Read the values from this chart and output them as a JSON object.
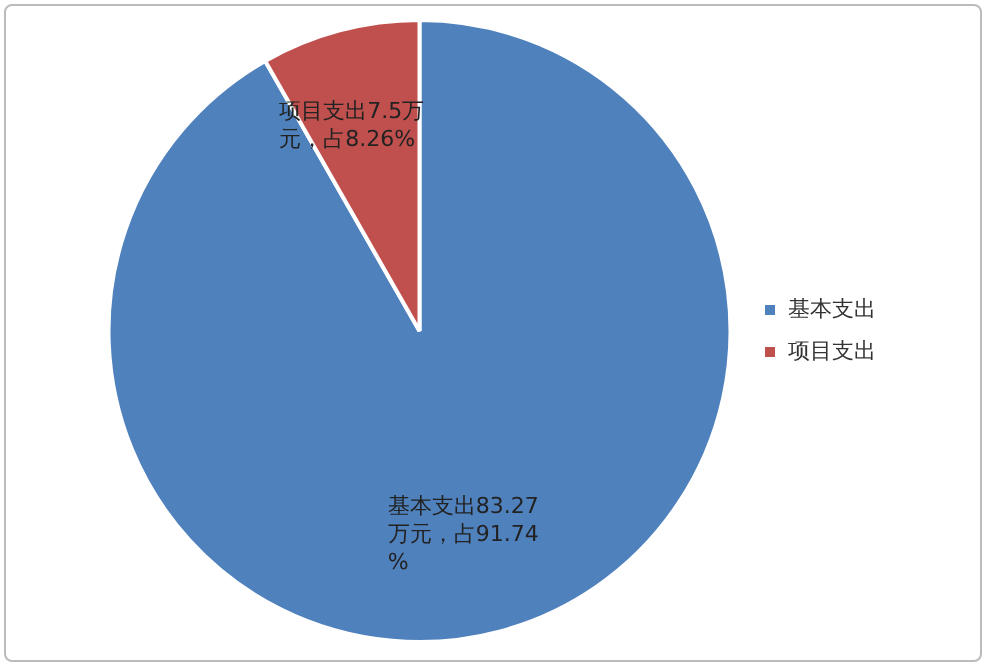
{
  "chart_data": {
    "type": "pie",
    "categories": [
      "基本支出",
      "项目支出"
    ],
    "values": [
      83.27,
      7.5
    ],
    "colors": [
      "#4f81bd",
      "#c0504d"
    ],
    "value_labels": [
      "基本支出83.27万元，占91.74%",
      "项目支出7.5万元，占8.26%"
    ],
    "legend": "right"
  }
}
